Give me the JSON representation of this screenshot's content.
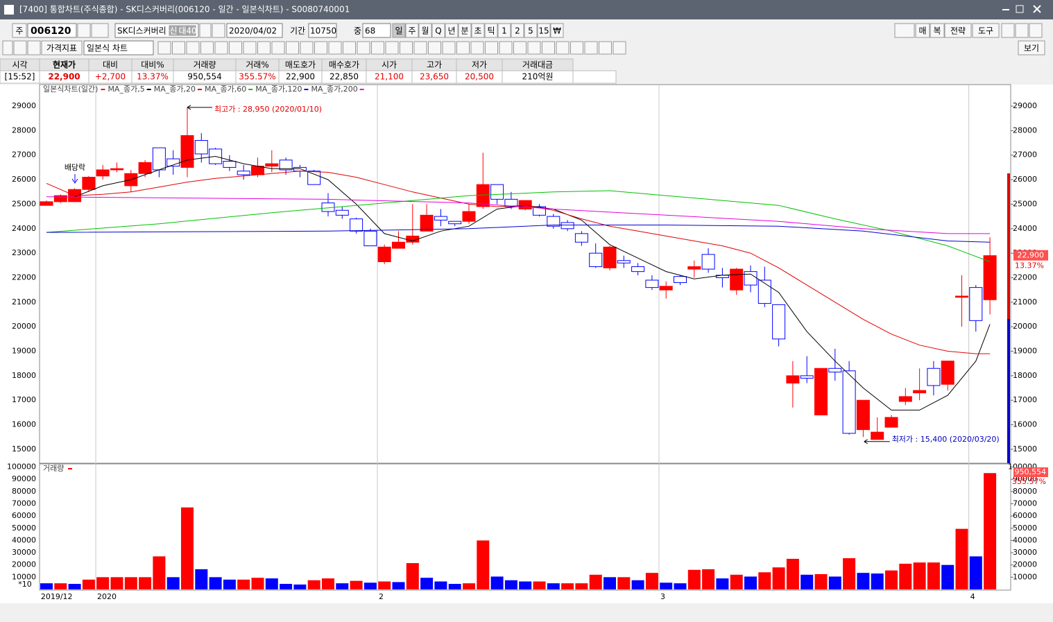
{
  "window": {
    "title": "[7400] 통합차트(주식종합) - SK디스커버리(006120 - 일간 - 일본식차트) - S0080740001"
  },
  "toolbar": {
    "market": "주",
    "code": "006120",
    "name": "SK디스커버리",
    "badges": [
      "신",
      "대",
      "40"
    ],
    "date": "2020/04/02",
    "period_label": "기간",
    "period": "10750",
    "count_label": "중",
    "count": "68",
    "intervals": [
      "일",
      "주",
      "월",
      "Q",
      "년",
      "분",
      "초",
      "틱",
      "1",
      "2",
      "5",
      "15",
      "₩"
    ],
    "right_buttons": [
      "매",
      "복",
      "전략",
      "도구"
    ],
    "indicator": "가격지표",
    "chart_type": "일본식 차트",
    "view": "보기"
  },
  "quote": {
    "headers": [
      "시각",
      "현재가",
      "대비",
      "대비%",
      "거래량",
      "거래%",
      "매도호가",
      "매수호가",
      "시가",
      "고가",
      "저가",
      "거래대금"
    ],
    "values": [
      "[15:52]",
      "22,900",
      "+2,700",
      "13.37%",
      "950,554",
      "355.57%",
      "22,900",
      "22,850",
      "21,100",
      "23,650",
      "20,500",
      "210억원"
    ]
  },
  "chart_data": [
    {
      "type": "candlestick",
      "title": "일본식차트(일간)",
      "up_color": "#ff0000",
      "down_color": "#0000ff",
      "open": [
        24950,
        25100,
        25100,
        25600,
        26150,
        26400,
        25750,
        26250,
        27300,
        26850,
        26500,
        27600,
        27250,
        26750,
        26350,
        26200,
        26550,
        26800,
        26500,
        26350,
        25050,
        24750,
        24400,
        23900,
        22650,
        23200,
        23450,
        23900,
        24500,
        24300,
        24300,
        24900,
        25800,
        25200,
        24800,
        24900,
        24500,
        24250,
        23800,
        23000,
        22400,
        22700,
        22450,
        21900,
        21500,
        22050,
        22350,
        22950,
        22100,
        21500,
        22250,
        21900,
        20900,
        17700,
        18000,
        16400,
        18300,
        18200,
        15800,
        15400,
        15900,
        16950,
        17300,
        18300,
        17650,
        21200,
        21600,
        21100
      ],
      "high": [
        25150,
        25400,
        25650,
        26150,
        26600,
        26700,
        26400,
        26800,
        27300,
        27200,
        28950,
        27900,
        27300,
        27000,
        26600,
        26900,
        27200,
        26900,
        26600,
        26400,
        25450,
        24900,
        24450,
        24000,
        23350,
        23900,
        25000,
        25000,
        24800,
        24300,
        25000,
        27100,
        25800,
        25500,
        25150,
        25000,
        24600,
        24350,
        23900,
        23400,
        23300,
        22900,
        22600,
        22100,
        21850,
        22100,
        22700,
        23200,
        22400,
        22400,
        22500,
        22450,
        20900,
        18600,
        18800,
        18300,
        19100,
        18600,
        17000,
        16300,
        16400,
        17500,
        18300,
        18600,
        18600,
        22100,
        21700,
        23650
      ],
      "low": [
        24950,
        25050,
        25100,
        25500,
        26000,
        26300,
        25500,
        26100,
        26100,
        26200,
        26100,
        26700,
        26600,
        26350,
        26000,
        26100,
        26300,
        26200,
        26100,
        25800,
        24500,
        24400,
        23800,
        23300,
        22550,
        23200,
        23350,
        23900,
        24100,
        24100,
        24200,
        24800,
        25000,
        24800,
        24750,
        24500,
        24000,
        23900,
        23300,
        22400,
        22300,
        22400,
        22100,
        21500,
        21150,
        21700,
        22000,
        22200,
        21600,
        21300,
        21400,
        20800,
        19200,
        16700,
        17700,
        16400,
        17800,
        15600,
        15500,
        15400,
        15900,
        16800,
        17000,
        17200,
        17400,
        20000,
        19800,
        20500
      ],
      "close": [
        25100,
        25350,
        25600,
        26100,
        26400,
        26450,
        26250,
        26700,
        26400,
        26550,
        27800,
        27050,
        26650,
        26500,
        26200,
        26550,
        26650,
        26400,
        26350,
        25800,
        24700,
        24550,
        23900,
        23300,
        23250,
        23450,
        23700,
        24550,
        24350,
        24200,
        24700,
        25800,
        25200,
        24900,
        25150,
        24550,
        24100,
        24000,
        23450,
        22450,
        23250,
        22600,
        22250,
        21600,
        21650,
        21800,
        22450,
        22350,
        22000,
        22350,
        21700,
        20950,
        19500,
        18000,
        17900,
        18300,
        18150,
        15650,
        17000,
        15700,
        16300,
        17150,
        17400,
        17600,
        18600,
        21250,
        20250,
        22900
      ],
      "lines": [
        {
          "name": "MA_종가,5",
          "color": "#000000",
          "x": [
            2,
            4,
            6,
            8,
            10,
            12,
            14,
            16,
            18,
            20,
            22,
            24,
            26,
            28,
            30,
            32,
            34,
            36,
            38,
            40,
            42,
            44,
            46,
            48,
            50,
            52,
            54,
            56,
            58,
            60,
            62,
            64,
            66,
            67
          ],
          "values": [
            25300,
            25750,
            26000,
            26400,
            26800,
            26950,
            26650,
            26450,
            26450,
            26000,
            25000,
            23800,
            23500,
            23900,
            24100,
            24800,
            24950,
            24800,
            24350,
            23350,
            22800,
            22250,
            21950,
            22100,
            22150,
            21400,
            19800,
            18600,
            17500,
            16600,
            16600,
            17200,
            18600,
            20100
          ]
        },
        {
          "name": "MA_종가,20",
          "color": "#e00000",
          "x": [
            0,
            2,
            4,
            6,
            8,
            10,
            12,
            14,
            16,
            18,
            20,
            22,
            24,
            26,
            28,
            30,
            32,
            34,
            36,
            38,
            40,
            42,
            44,
            46,
            48,
            50,
            52,
            54,
            56,
            58,
            60,
            62,
            64,
            66,
            67
          ],
          "values": [
            25850,
            25350,
            25400,
            25500,
            25700,
            25900,
            26050,
            26150,
            26250,
            26350,
            26300,
            26100,
            25800,
            25500,
            25250,
            25000,
            24900,
            24950,
            24750,
            24400,
            24100,
            23900,
            23700,
            23500,
            23300,
            23000,
            22400,
            21700,
            21000,
            20300,
            19700,
            19250,
            19000,
            18900,
            18900
          ]
        },
        {
          "name": "MA_종가,60",
          "color": "#00c000",
          "x": [
            0,
            8,
            16,
            24,
            30,
            36,
            40,
            44,
            48,
            52,
            56,
            60,
            64,
            67
          ],
          "values": [
            23850,
            24200,
            24650,
            25050,
            25350,
            25500,
            25550,
            25350,
            25150,
            24950,
            24400,
            23900,
            23300,
            22650
          ]
        },
        {
          "name": "MA_종가,120",
          "color": "#0000d0",
          "x": [
            0,
            20,
            30,
            36,
            44,
            52,
            58,
            64,
            67
          ],
          "values": [
            23850,
            23900,
            24000,
            24150,
            24150,
            24100,
            23900,
            23500,
            23450
          ]
        },
        {
          "name": "MA_종가,200",
          "color": "#e000e0",
          "x": [
            0,
            10,
            20,
            30,
            36,
            44,
            52,
            58,
            64,
            67
          ],
          "values": [
            25300,
            25250,
            25200,
            25050,
            24800,
            24550,
            24300,
            24000,
            23800,
            23800
          ]
        }
      ],
      "ylim": [
        14460,
        29850
      ],
      "yticks": [
        15000,
        16000,
        17000,
        18000,
        19000,
        20000,
        21000,
        22000,
        23000,
        24000,
        25000,
        26000,
        27000,
        28000,
        29000
      ],
      "xticks": [
        {
          "value": -0.5,
          "label": "2019/12"
        },
        {
          "value": 3.5,
          "label": "2020"
        },
        {
          "value": 23.5,
          "label": "2"
        },
        {
          "value": 43.5,
          "label": "3"
        },
        {
          "value": 65.5,
          "label": "4"
        }
      ],
      "annotations": {
        "high": "최고가 : 28,950 (2020/01/10)",
        "low": "최저가 : 15,400 (2020/03/20)",
        "event": "배당락"
      }
    },
    {
      "type": "bar",
      "title": "거래량",
      "unit": "*10",
      "up_color": "#ff0000",
      "down_color": "#0000ff",
      "values": [
        5000,
        5000,
        4500,
        8000,
        10000,
        10000,
        10000,
        10000,
        27000,
        10000,
        67000,
        16500,
        10000,
        8000,
        8000,
        9500,
        9000,
        4500,
        4000,
        7500,
        9000,
        5000,
        7000,
        5500,
        6500,
        6000,
        21500,
        9500,
        6500,
        4500,
        5000,
        40000,
        10500,
        7500,
        6500,
        6500,
        5000,
        5000,
        5000,
        12000,
        10000,
        10000,
        7500,
        13500,
        5500,
        5000,
        16000,
        16500,
        9000,
        12000,
        10500,
        14000,
        18000,
        25000,
        12000,
        12500,
        10500,
        25500,
        13500,
        13000,
        15500,
        21000,
        22000,
        22000,
        20000,
        49500,
        27000,
        95055
      ],
      "ylim": [
        0,
        102000
      ],
      "yticks": [
        10000,
        20000,
        30000,
        40000,
        50000,
        60000,
        70000,
        80000,
        90000,
        100000
      ]
    }
  ]
}
